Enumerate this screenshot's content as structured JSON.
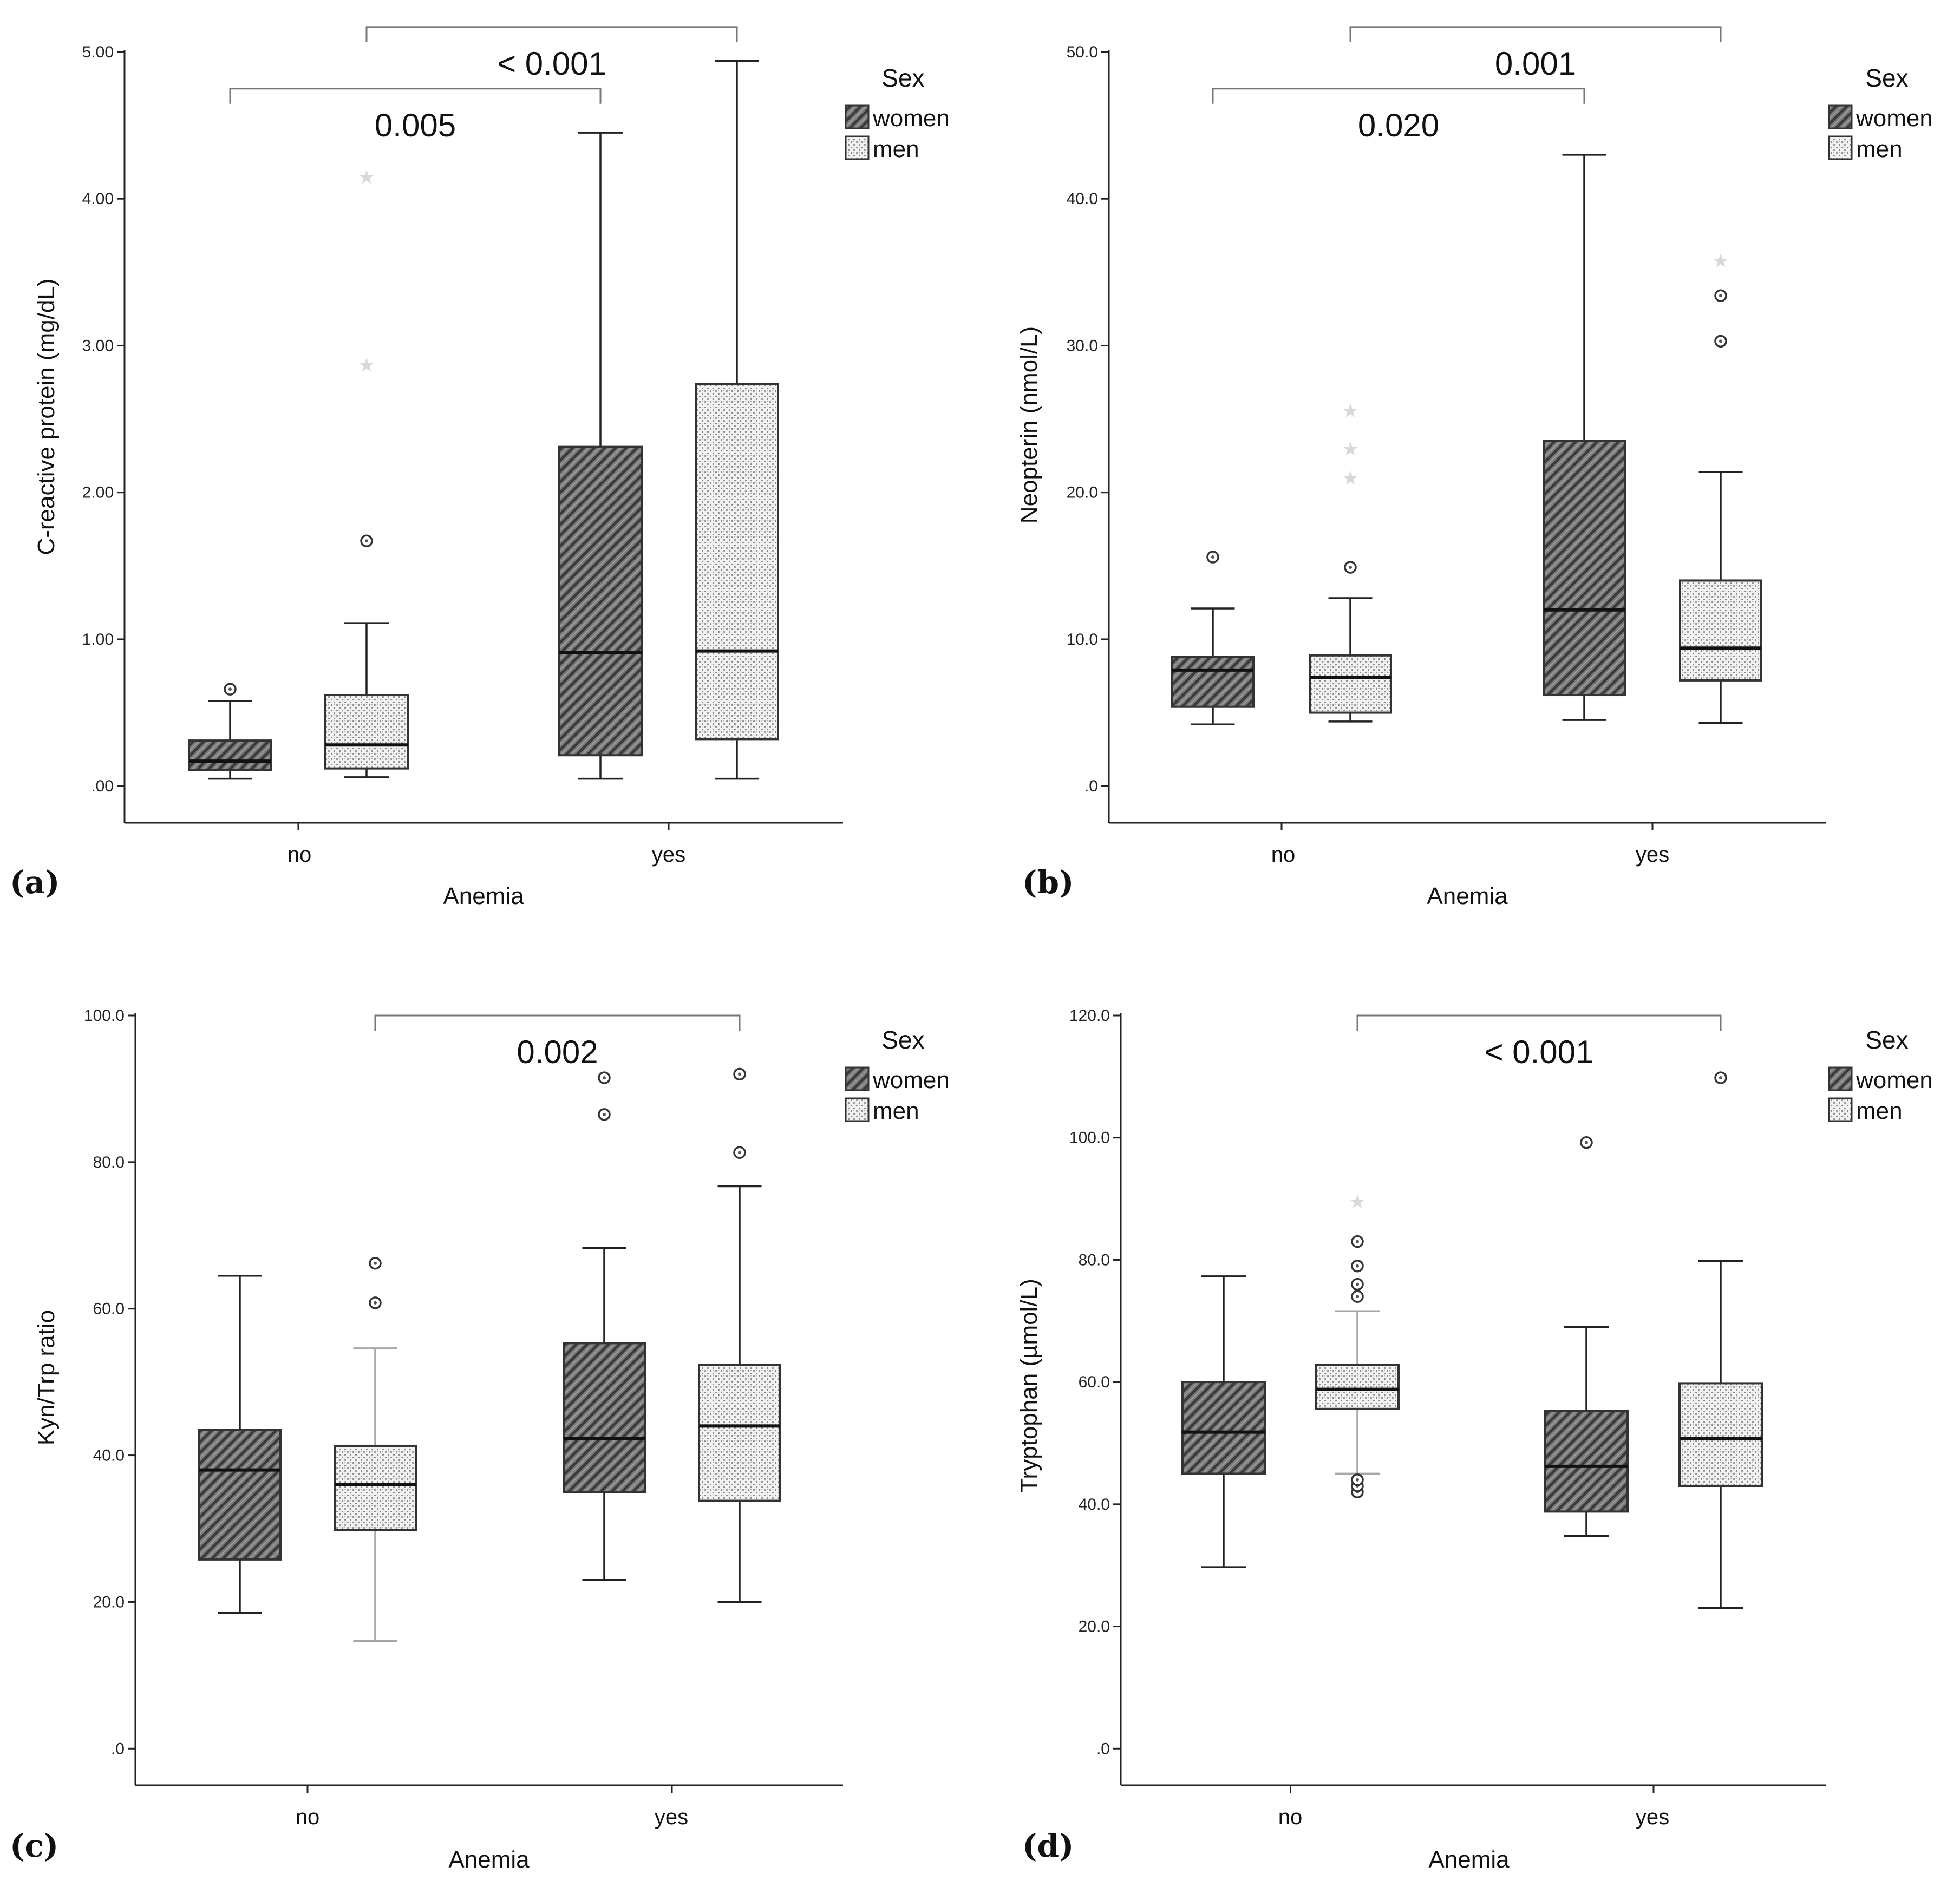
{
  "colors": {
    "women_fill_bg": "#7a7a7a",
    "women_fill_line": "#3a3a3a",
    "men_fill_bg": "#f2f2f2",
    "men_fill_dot": "#8a8a8a",
    "whisker": "#222222",
    "whisker_light": "#a6a6a6",
    "extreme_marker": "#d6d6d6"
  },
  "chart_data": [
    {
      "id": "a",
      "type": "boxplot",
      "panel_label": "(a)",
      "xlabel": "Anemia",
      "ylabel": "C-reactive protein (mg/dL)",
      "categories": [
        "no",
        "yes"
      ],
      "legend": {
        "title": "Sex",
        "entries": [
          "women",
          "men"
        ],
        "position": "top-right"
      },
      "ylim": [
        -0.25,
        5.0
      ],
      "yticks": [
        0,
        1,
        2,
        3,
        4,
        5
      ],
      "ytick_labels": [
        ".00",
        "1.00",
        "2.00",
        "3.00",
        "4.00",
        "5.00"
      ],
      "boxes": [
        {
          "category": "no",
          "series": "women",
          "whisker_low": 0.05,
          "q1": 0.11,
          "median": 0.17,
          "q3": 0.31,
          "whisker_high": 0.58,
          "outliers": [
            0.66
          ],
          "extremes": []
        },
        {
          "category": "no",
          "series": "men",
          "whisker_low": 0.06,
          "q1": 0.12,
          "median": 0.28,
          "q3": 0.62,
          "whisker_high": 1.11,
          "outliers": [
            1.67
          ],
          "extremes": [
            2.87,
            4.15
          ]
        },
        {
          "category": "yes",
          "series": "women",
          "whisker_low": 0.05,
          "q1": 0.21,
          "median": 0.91,
          "q3": 2.31,
          "whisker_high": 4.45,
          "outliers": [],
          "extremes": []
        },
        {
          "category": "yes",
          "series": "men",
          "whisker_low": 0.05,
          "q1": 0.32,
          "median": 0.92,
          "q3": 2.74,
          "whisker_high": 4.94,
          "outliers": [],
          "extremes": []
        }
      ],
      "brackets": [
        {
          "label": "0.005",
          "from": "no-women",
          "to": "yes-women",
          "level": 4.75
        },
        {
          "label": "< 0.001",
          "from": "no-men",
          "to": "yes-men",
          "level": 5.17
        }
      ]
    },
    {
      "id": "b",
      "type": "boxplot",
      "panel_label": "(b)",
      "xlabel": "Anemia",
      "ylabel": "Neopterin (nmol/L)",
      "categories": [
        "no",
        "yes"
      ],
      "legend": {
        "title": "Sex",
        "entries": [
          "women",
          "men"
        ],
        "position": "top-right"
      },
      "ylim": [
        -2.5,
        50.0
      ],
      "yticks": [
        0,
        10,
        20,
        30,
        40,
        50
      ],
      "ytick_labels": [
        ".0",
        "10.0",
        "20.0",
        "30.0",
        "40.0",
        "50.0"
      ],
      "boxes": [
        {
          "category": "no",
          "series": "women",
          "whisker_low": 4.2,
          "q1": 5.4,
          "median": 7.9,
          "q3": 8.8,
          "whisker_high": 12.1,
          "outliers": [
            15.6
          ],
          "extremes": []
        },
        {
          "category": "no",
          "series": "men",
          "whisker_low": 4.4,
          "q1": 5.0,
          "median": 7.4,
          "q3": 8.9,
          "whisker_high": 12.8,
          "outliers": [
            14.9
          ],
          "extremes": [
            21.0,
            23.0,
            25.6
          ]
        },
        {
          "category": "yes",
          "series": "women",
          "whisker_low": 4.5,
          "q1": 6.2,
          "median": 12.0,
          "q3": 23.5,
          "whisker_high": 43.0,
          "outliers": [],
          "extremes": []
        },
        {
          "category": "yes",
          "series": "men",
          "whisker_low": 4.3,
          "q1": 7.2,
          "median": 9.4,
          "q3": 14.0,
          "whisker_high": 21.4,
          "outliers": [
            30.3,
            33.4
          ],
          "extremes": [
            35.8
          ]
        }
      ],
      "brackets": [
        {
          "label": "0.020",
          "from": "no-women",
          "to": "yes-women",
          "level": 47.5
        },
        {
          "label": "0.001",
          "from": "no-men",
          "to": "yes-men",
          "level": 51.7
        }
      ]
    },
    {
      "id": "c",
      "type": "boxplot",
      "panel_label": "(c)",
      "xlabel": "Anemia",
      "ylabel": "Kyn/Trp ratio",
      "categories": [
        "no",
        "yes"
      ],
      "legend": {
        "title": "Sex",
        "entries": [
          "women",
          "men"
        ],
        "position": "top-right"
      },
      "ylim": [
        -5,
        100
      ],
      "yticks": [
        0,
        20,
        40,
        60,
        80,
        100
      ],
      "ytick_labels": [
        ".0",
        "20.0",
        "40.0",
        "60.0",
        "80.0",
        "100.0"
      ],
      "boxes": [
        {
          "category": "no",
          "series": "women",
          "whisker_low": 18.5,
          "q1": 25.8,
          "median": 38.0,
          "q3": 43.5,
          "whisker_high": 64.5,
          "outliers": [],
          "extremes": []
        },
        {
          "category": "no",
          "series": "men",
          "whisker_low": 14.7,
          "q1": 29.8,
          "median": 36.0,
          "q3": 41.3,
          "whisker_high": 54.6,
          "outliers": [
            60.8,
            66.2
          ],
          "extremes": [],
          "light_whiskers": true
        },
        {
          "category": "yes",
          "series": "women",
          "whisker_low": 23.0,
          "q1": 35.0,
          "median": 42.3,
          "q3": 55.3,
          "whisker_high": 68.3,
          "outliers": [
            86.5,
            91.5
          ],
          "extremes": []
        },
        {
          "category": "yes",
          "series": "men",
          "whisker_low": 20.0,
          "q1": 33.8,
          "median": 44.0,
          "q3": 52.3,
          "whisker_high": 76.7,
          "outliers": [
            81.3,
            92.0
          ],
          "extremes": []
        }
      ],
      "brackets": [
        {
          "label": "0.002",
          "from": "no-men",
          "to": "yes-men",
          "level": 100
        }
      ]
    },
    {
      "id": "d",
      "type": "boxplot",
      "panel_label": "(d)",
      "xlabel": "Anemia",
      "ylabel": "Tryptophan (µmol/L)",
      "categories": [
        "no",
        "yes"
      ],
      "legend": {
        "title": "Sex",
        "entries": [
          "women",
          "men"
        ],
        "position": "top-right"
      },
      "ylim": [
        -6,
        120
      ],
      "yticks": [
        0,
        20,
        40,
        60,
        80,
        100,
        120
      ],
      "ytick_labels": [
        ".0",
        "20.0",
        "40.0",
        "60.0",
        "80.0",
        "100.0",
        "120.0"
      ],
      "boxes": [
        {
          "category": "no",
          "series": "women",
          "whisker_low": 29.7,
          "q1": 45.0,
          "median": 51.8,
          "q3": 60.0,
          "whisker_high": 77.3,
          "outliers": [],
          "extremes": []
        },
        {
          "category": "no",
          "series": "men",
          "whisker_low": 45.0,
          "q1": 55.6,
          "median": 58.8,
          "q3": 62.8,
          "whisker_high": 71.6,
          "outliers": [
            42.0,
            43.0,
            44.0,
            74.0,
            76.0,
            79.0,
            83.0
          ],
          "extremes": [
            89.6
          ],
          "light_whiskers": true
        },
        {
          "category": "yes",
          "series": "women",
          "whisker_low": 34.8,
          "q1": 38.8,
          "median": 46.2,
          "q3": 55.3,
          "whisker_high": 69.0,
          "outliers": [
            99.2
          ],
          "extremes": []
        },
        {
          "category": "yes",
          "series": "men",
          "whisker_low": 23.0,
          "q1": 43.0,
          "median": 50.8,
          "q3": 59.8,
          "whisker_high": 79.8,
          "outliers": [
            109.8
          ],
          "extremes": []
        }
      ],
      "brackets": [
        {
          "label": "< 0.001",
          "from": "no-men",
          "to": "yes-men",
          "level": 120
        }
      ]
    }
  ]
}
